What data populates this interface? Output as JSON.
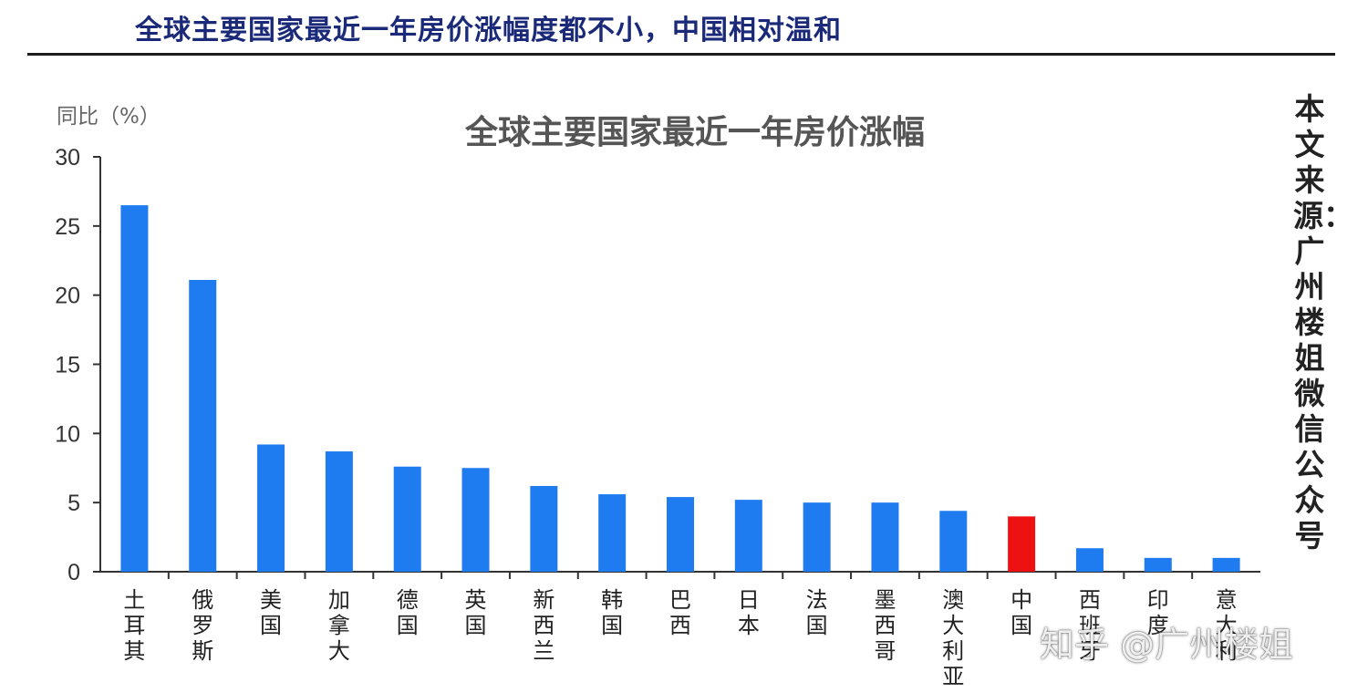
{
  "headline": "全球主要国家最近一年房价涨幅度都不小，中国相对温和",
  "side_note": "本文来源：广州楼姐 微信公众号",
  "watermark": "知乎 @广州楼姐",
  "colors": {
    "bar": "#1f7bf0",
    "highlight": "#ee1111",
    "headline": "#1a2a78"
  },
  "chart_data": {
    "type": "bar",
    "title": "全球主要国家最近一年房价涨幅",
    "ylabel": "同比（%）",
    "xlabel": "",
    "ylim": [
      0,
      30
    ],
    "yticks": [
      0,
      5,
      10,
      15,
      20,
      25,
      30
    ],
    "categories": [
      "土耳其",
      "俄罗斯",
      "美国",
      "加拿大",
      "德国",
      "英国",
      "新西兰",
      "韩国",
      "巴西",
      "日本",
      "法国",
      "墨西哥",
      "澳大利亚",
      "中国",
      "西班牙",
      "印度",
      "意大利"
    ],
    "values": [
      26.5,
      21.1,
      9.2,
      8.7,
      7.6,
      7.5,
      6.2,
      5.6,
      5.4,
      5.2,
      5.0,
      5.0,
      4.4,
      4.0,
      1.7,
      1.0,
      1.0
    ],
    "highlight_category": "中国",
    "grid": false,
    "legend": "none"
  }
}
